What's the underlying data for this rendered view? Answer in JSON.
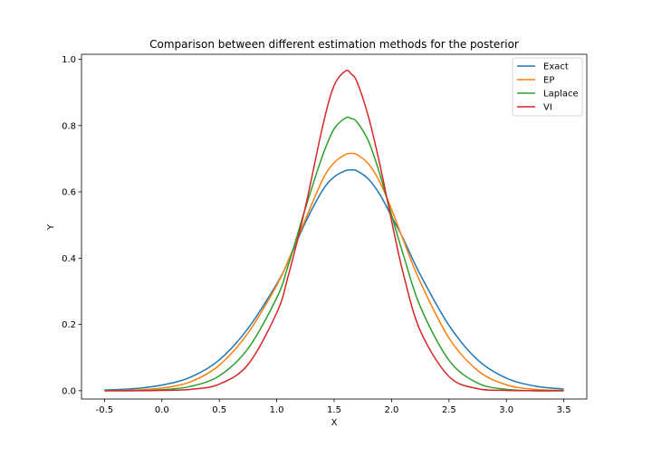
{
  "chart_data": {
    "type": "line",
    "title": "Comparison between different estimation methods for the posterior",
    "xlabel": "X",
    "ylabel": "Y",
    "xlim": [
      -0.7,
      3.7
    ],
    "ylim": [
      -0.025,
      1.015
    ],
    "x_ticks": [
      "-0.5",
      "0.0",
      "0.5",
      "1.0",
      "1.5",
      "2.0",
      "2.5",
      "3.0",
      "3.5"
    ],
    "y_ticks": [
      "0.0",
      "0.2",
      "0.4",
      "0.6",
      "0.8",
      "1.0"
    ],
    "grid": false,
    "legend_position": "top-right",
    "x": [
      -0.5,
      -0.25,
      0.0,
      0.25,
      0.5,
      0.75,
      1.0,
      1.1,
      1.25,
      1.4,
      1.5,
      1.6,
      1.65,
      1.7,
      1.8,
      1.9,
      2.0,
      2.1,
      2.25,
      2.5,
      2.75,
      3.0,
      3.25,
      3.5
    ],
    "series": [
      {
        "name": "Exact",
        "color": "#1f77b4",
        "values": [
          0.002,
          0.006,
          0.017,
          0.041,
          0.093,
          0.188,
          0.322,
          0.39,
          0.508,
          0.605,
          0.645,
          0.664,
          0.666,
          0.663,
          0.638,
          0.591,
          0.526,
          0.46,
          0.35,
          0.197,
          0.093,
          0.038,
          0.014,
          0.005
        ]
      },
      {
        "name": "EP",
        "color": "#ff7f0e",
        "values": [
          0.0,
          0.002,
          0.008,
          0.027,
          0.077,
          0.174,
          0.318,
          0.392,
          0.517,
          0.637,
          0.688,
          0.713,
          0.716,
          0.712,
          0.684,
          0.628,
          0.547,
          0.457,
          0.328,
          0.159,
          0.061,
          0.018,
          0.004,
          0.001
        ]
      },
      {
        "name": "Laplace",
        "color": "#2ca02c",
        "values": [
          0.0,
          0.0,
          0.003,
          0.013,
          0.045,
          0.127,
          0.28,
          0.378,
          0.551,
          0.71,
          0.79,
          0.823,
          0.821,
          0.81,
          0.752,
          0.651,
          0.53,
          0.413,
          0.254,
          0.092,
          0.023,
          0.004,
          0.0,
          0.0
        ]
      },
      {
        "name": "VI",
        "color": "#d62728",
        "values": [
          0.0,
          0.0,
          0.001,
          0.004,
          0.02,
          0.079,
          0.235,
          0.346,
          0.555,
          0.798,
          0.921,
          0.965,
          0.955,
          0.931,
          0.825,
          0.679,
          0.513,
          0.356,
          0.181,
          0.043,
          0.006,
          0.001,
          0.0,
          0.0
        ]
      }
    ]
  }
}
